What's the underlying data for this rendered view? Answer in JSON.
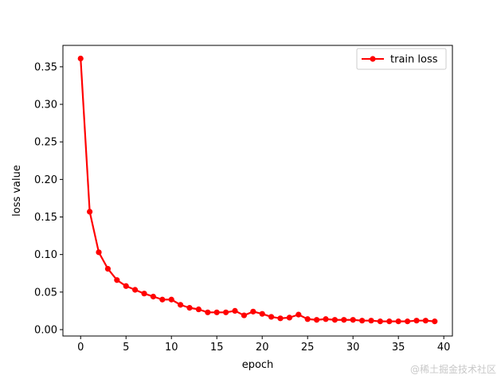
{
  "chart_data": {
    "type": "line",
    "title": "",
    "xlabel": "epoch",
    "ylabel": "loss value",
    "xlim": [
      -1.95,
      40.95
    ],
    "ylim": [
      -0.0085,
      0.3785
    ],
    "xticks": [
      0,
      5,
      10,
      15,
      20,
      25,
      30,
      35,
      40
    ],
    "yticks": [
      0.0,
      0.05,
      0.1,
      0.15,
      0.2,
      0.25,
      0.3,
      0.35
    ],
    "grid": false,
    "legend_position": "top-right",
    "series": [
      {
        "name": "train loss",
        "color": "#ff0000",
        "marker": "circle",
        "x": [
          0,
          1,
          2,
          3,
          4,
          5,
          6,
          7,
          8,
          9,
          10,
          11,
          12,
          13,
          14,
          15,
          16,
          17,
          18,
          19,
          20,
          21,
          22,
          23,
          24,
          25,
          26,
          27,
          28,
          29,
          30,
          31,
          32,
          33,
          34,
          35,
          36,
          37,
          38,
          39
        ],
        "values": [
          0.361,
          0.157,
          0.103,
          0.081,
          0.066,
          0.058,
          0.053,
          0.048,
          0.044,
          0.04,
          0.04,
          0.033,
          0.029,
          0.027,
          0.023,
          0.023,
          0.023,
          0.025,
          0.019,
          0.024,
          0.021,
          0.017,
          0.015,
          0.016,
          0.02,
          0.014,
          0.013,
          0.014,
          0.013,
          0.013,
          0.013,
          0.012,
          0.012,
          0.011,
          0.011,
          0.011,
          0.011,
          0.012,
          0.012,
          0.011
        ]
      }
    ]
  },
  "watermark": "@稀土掘金技术社区"
}
